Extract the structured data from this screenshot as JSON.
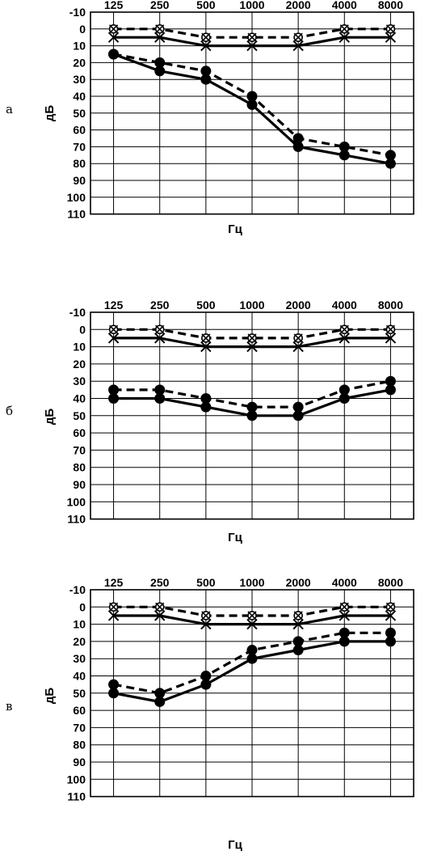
{
  "chart_data": [
    {
      "type": "line",
      "panel_label": "а",
      "xlabel": "Гц",
      "ylabel": "дБ",
      "categories": [
        "125",
        "250",
        "500",
        "1000",
        "2000",
        "4000",
        "8000"
      ],
      "y_ticks": [
        "-10",
        "0",
        "10",
        "20",
        "30",
        "40",
        "50",
        "60",
        "70",
        "80",
        "90",
        "100",
        "110"
      ],
      "ylim": [
        -10,
        110
      ],
      "y_inverted": true,
      "x_axis_position": "top",
      "grid": true,
      "series": [
        {
          "style": "dashed",
          "marker": "o",
          "values": [
            0,
            0,
            5,
            5,
            5,
            0,
            0
          ]
        },
        {
          "style": "solid",
          "marker": "x",
          "values": [
            5,
            5,
            10,
            10,
            10,
            5,
            5
          ]
        },
        {
          "style": "dashed",
          "marker": "filled-circle",
          "values": [
            15,
            20,
            25,
            40,
            65,
            70,
            75
          ]
        },
        {
          "style": "solid",
          "marker": "filled-circle",
          "values": [
            15,
            25,
            30,
            45,
            70,
            75,
            80
          ]
        }
      ]
    },
    {
      "type": "line",
      "panel_label": "б",
      "xlabel": "Гц",
      "ylabel": "дБ",
      "categories": [
        "125",
        "250",
        "500",
        "1000",
        "2000",
        "4000",
        "8000"
      ],
      "y_ticks": [
        "-10",
        "0",
        "10",
        "20",
        "30",
        "40",
        "50",
        "60",
        "70",
        "80",
        "90",
        "100",
        "110"
      ],
      "ylim": [
        -10,
        110
      ],
      "y_inverted": true,
      "x_axis_position": "top",
      "grid": true,
      "series": [
        {
          "style": "dashed",
          "marker": "o",
          "values": [
            0,
            0,
            5,
            5,
            5,
            0,
            0
          ]
        },
        {
          "style": "solid",
          "marker": "x",
          "values": [
            5,
            5,
            10,
            10,
            10,
            5,
            5
          ]
        },
        {
          "style": "dashed",
          "marker": "filled-circle",
          "values": [
            35,
            35,
            40,
            45,
            45,
            35,
            30
          ]
        },
        {
          "style": "solid",
          "marker": "filled-circle",
          "values": [
            40,
            40,
            45,
            50,
            50,
            40,
            35
          ]
        }
      ]
    },
    {
      "type": "line",
      "panel_label": "в",
      "xlabel": "Гц",
      "ylabel": "дБ",
      "categories": [
        "125",
        "250",
        "500",
        "1000",
        "2000",
        "4000",
        "8000"
      ],
      "y_ticks": [
        "-10",
        "0",
        "10",
        "20",
        "30",
        "40",
        "50",
        "60",
        "70",
        "80",
        "90",
        "100",
        "110"
      ],
      "ylim": [
        -10,
        110
      ],
      "y_inverted": true,
      "x_axis_position": "top",
      "grid": true,
      "series": [
        {
          "style": "dashed",
          "marker": "o",
          "values": [
            0,
            0,
            5,
            5,
            5,
            0,
            0
          ]
        },
        {
          "style": "solid",
          "marker": "x",
          "values": [
            5,
            5,
            10,
            10,
            10,
            5,
            5
          ]
        },
        {
          "style": "dashed",
          "marker": "filled-circle",
          "values": [
            45,
            50,
            40,
            25,
            20,
            15,
            15
          ]
        },
        {
          "style": "solid",
          "marker": "filled-circle",
          "values": [
            50,
            55,
            45,
            30,
            25,
            20,
            20
          ]
        }
      ]
    }
  ]
}
